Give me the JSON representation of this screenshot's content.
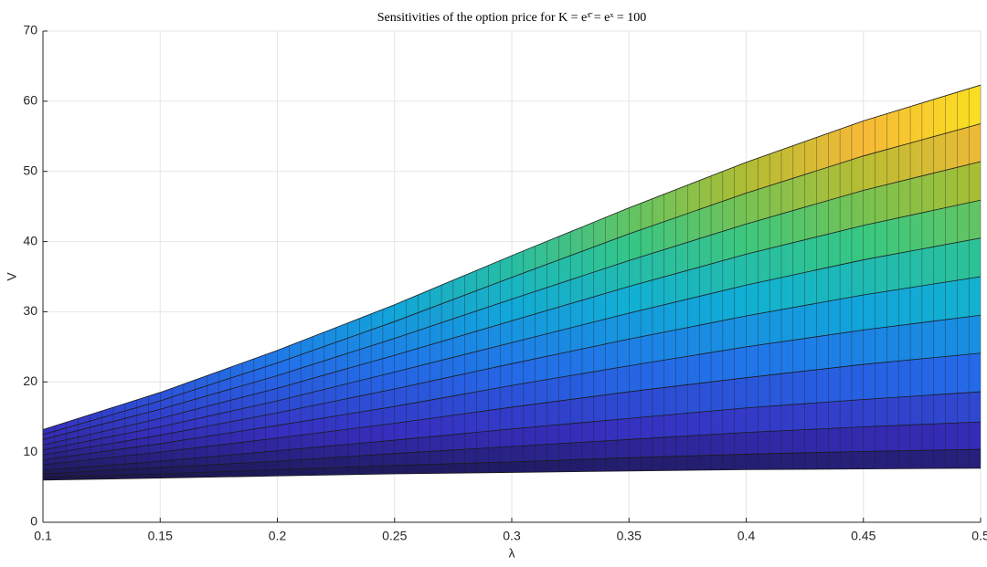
{
  "chart_data": {
    "type": "surface",
    "title": "Sensitivities of the option price for K = eˣ̄ = eˣ = 100",
    "xlabel": "λ",
    "ylabel": "V",
    "x": [
      0.1,
      0.15,
      0.2,
      0.25,
      0.3,
      0.35,
      0.4,
      0.45,
      0.5
    ],
    "xlim": [
      0.1,
      0.5
    ],
    "xticks": [
      0.1,
      0.15,
      0.2,
      0.25,
      0.3,
      0.35,
      0.4,
      0.45,
      0.5
    ],
    "ylim": [
      0,
      70
    ],
    "yticks": [
      0,
      10,
      20,
      30,
      40,
      50,
      60,
      70
    ],
    "grid": true,
    "colormap": "parula",
    "series": [
      {
        "values": [
          6.0,
          6.3,
          6.6,
          6.9,
          7.1,
          7.3,
          7.5,
          7.6,
          7.7
        ]
      },
      {
        "values": [
          6.4,
          6.9,
          7.5,
          8.1,
          8.6,
          9.2,
          9.7,
          10.1,
          10.4
        ]
      },
      {
        "values": [
          6.9,
          7.8,
          8.7,
          9.8,
          10.8,
          11.8,
          12.8,
          13.6,
          14.3
        ]
      },
      {
        "values": [
          7.4,
          8.7,
          10.2,
          11.7,
          13.3,
          14.8,
          16.3,
          17.5,
          18.6
        ]
      },
      {
        "values": [
          8.2,
          10.0,
          12.0,
          14.1,
          16.4,
          18.6,
          20.6,
          22.5,
          24.1
        ]
      },
      {
        "values": [
          8.9,
          11.2,
          13.8,
          16.5,
          19.5,
          22.3,
          25.0,
          27.4,
          29.5
        ]
      },
      {
        "values": [
          9.6,
          12.4,
          15.6,
          19.0,
          22.6,
          26.1,
          29.4,
          32.4,
          35.0
        ]
      },
      {
        "values": [
          10.3,
          13.6,
          17.3,
          21.4,
          25.6,
          29.8,
          33.8,
          37.4,
          40.5
        ]
      },
      {
        "values": [
          11.0,
          14.8,
          19.1,
          23.8,
          28.7,
          33.6,
          38.2,
          42.3,
          45.9
        ]
      },
      {
        "values": [
          11.8,
          16.1,
          20.9,
          26.2,
          31.8,
          37.3,
          42.5,
          47.3,
          51.4
        ]
      },
      {
        "values": [
          12.5,
          17.3,
          22.7,
          28.6,
          34.9,
          41.1,
          46.9,
          52.2,
          56.8
        ]
      },
      {
        "values": [
          13.2,
          18.5,
          24.5,
          31.0,
          38.0,
          44.8,
          51.3,
          57.2,
          62.3
        ]
      }
    ]
  }
}
